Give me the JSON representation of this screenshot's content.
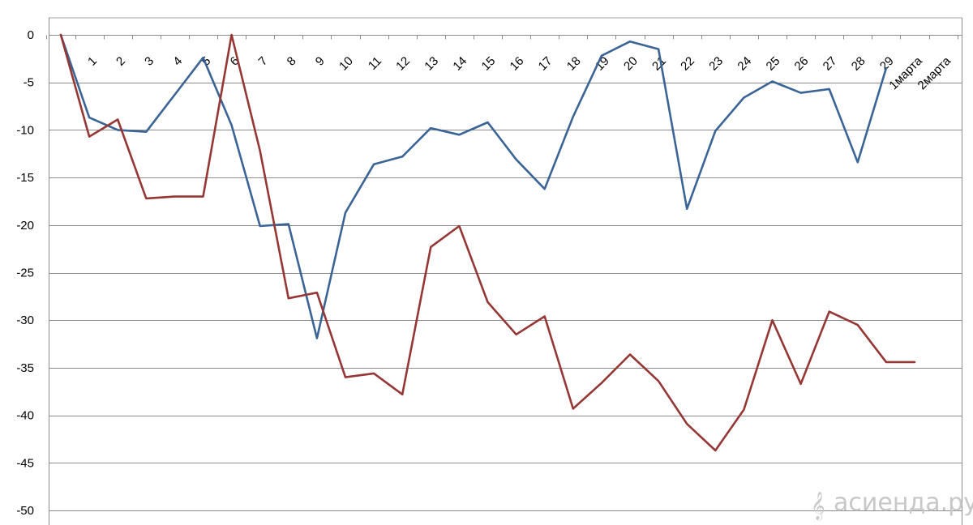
{
  "chart_data": {
    "type": "line",
    "title": "",
    "xlabel": "",
    "ylabel": "",
    "ylim": [
      -50,
      0
    ],
    "y_ticks": [
      0,
      -5,
      -10,
      -15,
      -20,
      -25,
      -30,
      -35,
      -40,
      -45,
      -50
    ],
    "categories": [
      "",
      "1",
      "2",
      "3",
      "4",
      "5",
      "6",
      "7",
      "8",
      "9",
      "10",
      "11",
      "12",
      "13",
      "14",
      "15",
      "16",
      "17",
      "18",
      "19",
      "20",
      "21",
      "22",
      "23",
      "24",
      "25",
      "26",
      "27",
      "28",
      "29",
      "1марта",
      "2марта"
    ],
    "grid": "horizontal",
    "legend": "none",
    "series": [
      {
        "color": "#3b6496",
        "values": [
          0,
          -8.7,
          -10.0,
          -10.2,
          -6.3,
          -2.4,
          -9.5,
          -20.1,
          -19.9,
          -31.9,
          -18.7,
          -13.6,
          -12.8,
          -9.8,
          -10.5,
          -9.2,
          -13.1,
          -16.2,
          -8.6,
          -2.2,
          -0.7,
          -1.5,
          -18.3,
          -10.1,
          -6.6,
          -4.9,
          -6.1,
          -5.7,
          -13.4,
          -3.5,
          null,
          null
        ]
      },
      {
        "color": "#953735",
        "values": [
          0,
          -10.7,
          -8.9,
          -17.2,
          -17.0,
          -17.0,
          0,
          -12.2,
          -27.7,
          -27.1,
          -36.0,
          -35.6,
          -37.8,
          -22.3,
          -20.1,
          -28.1,
          -31.5,
          -29.6,
          -39.3,
          -36.6,
          -33.6,
          -36.4,
          -40.9,
          -43.7,
          -39.4,
          -30.0,
          -36.7,
          -29.1,
          -30.5,
          -34.4,
          -34.4,
          null
        ]
      }
    ]
  },
  "watermark": {
    "text": "асиенда.ру",
    "icon": "treble-clef-icon"
  }
}
